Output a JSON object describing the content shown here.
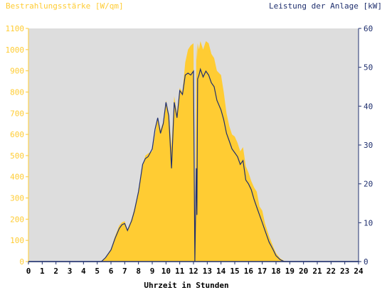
{
  "chart_data": {
    "type": "area",
    "title_left": "Bestrahlungsstärke [W/qm]",
    "title_right": "Leistung der Anlage [kW]",
    "xlabel": "Uhrzeit in Stunden",
    "x_ticks": [
      0,
      1,
      2,
      3,
      4,
      5,
      6,
      7,
      8,
      9,
      10,
      11,
      12,
      13,
      14,
      15,
      16,
      17,
      18,
      19,
      20,
      21,
      22,
      23,
      24
    ],
    "y_left_ticks": [
      0,
      100,
      200,
      300,
      400,
      500,
      600,
      700,
      800,
      900,
      1000,
      1100
    ],
    "y_right_ticks": [
      0,
      10,
      20,
      30,
      40,
      50,
      60
    ],
    "xlim": [
      0,
      24
    ],
    "ylim_left": [
      0,
      1100
    ],
    "ylim_right": [
      0,
      60
    ],
    "grid": false,
    "colors": {
      "irradiance_fill": "#ffcc33",
      "power_line": "#1f2f6e",
      "plot_background": "#dddddd",
      "left_axis_text": "#ffcc33",
      "right_axis_text": "#1f2f6e",
      "x_axis_text": "#000000"
    },
    "series": [
      {
        "axis": "left",
        "x": [
          0,
          5.3,
          5.6,
          6.0,
          6.3,
          6.6,
          6.8,
          7.0,
          7.2,
          7.5,
          7.7,
          8.0,
          8.3,
          8.5,
          8.7,
          9.0,
          9.2,
          9.4,
          9.6,
          9.8,
          10.0,
          10.2,
          10.4,
          10.6,
          10.8,
          11.0,
          11.2,
          11.4,
          11.6,
          11.8,
          12.0,
          12.1,
          12.2,
          12.25,
          12.3,
          12.4,
          12.5,
          12.7,
          12.9,
          13.1,
          13.3,
          13.5,
          13.7,
          14.0,
          14.2,
          14.4,
          14.6,
          14.8,
          15.0,
          15.2,
          15.4,
          15.6,
          15.8,
          16.0,
          16.2,
          16.4,
          16.6,
          16.8,
          17.0,
          17.2,
          17.5,
          17.8,
          18.0,
          18.3,
          18.6,
          19.0,
          19.4,
          19.6,
          24
        ],
        "y": [
          0,
          0,
          20,
          60,
          120,
          170,
          185,
          190,
          150,
          200,
          250,
          330,
          450,
          500,
          510,
          520,
          600,
          680,
          620,
          660,
          760,
          700,
          540,
          780,
          700,
          820,
          800,
          940,
          1000,
          1020,
          1030,
          0,
          1020,
          950,
          1030,
          1000,
          1040,
          1000,
          1040,
          1030,
          980,
          960,
          900,
          880,
          800,
          700,
          640,
          600,
          590,
          560,
          520,
          540,
          450,
          420,
          380,
          350,
          330,
          260,
          240,
          180,
          120,
          70,
          40,
          15,
          3,
          0,
          0,
          0,
          0
        ]
      },
      {
        "axis": "right",
        "x": [
          0,
          5.3,
          5.6,
          6.0,
          6.3,
          6.6,
          6.8,
          7.0,
          7.2,
          7.5,
          7.7,
          8.0,
          8.3,
          8.5,
          8.7,
          9.0,
          9.2,
          9.4,
          9.6,
          9.8,
          10.0,
          10.2,
          10.4,
          10.6,
          10.8,
          11.0,
          11.2,
          11.4,
          11.6,
          11.8,
          12.0,
          12.1,
          12.2,
          12.25,
          12.3,
          12.4,
          12.5,
          12.7,
          12.9,
          13.1,
          13.3,
          13.5,
          13.7,
          14.0,
          14.2,
          14.4,
          14.6,
          14.8,
          15.0,
          15.2,
          15.4,
          15.6,
          15.8,
          16.0,
          16.2,
          16.4,
          16.6,
          16.8,
          17.0,
          17.2,
          17.5,
          17.8,
          18.0,
          18.3,
          18.6,
          19.0,
          19.4,
          19.6,
          24
        ],
        "y": [
          0,
          0,
          1.0,
          3.0,
          6.0,
          8.5,
          9.5,
          9.8,
          8.0,
          10.5,
          13.0,
          18.0,
          25.0,
          26.5,
          27.0,
          29.0,
          34.0,
          37.0,
          33.0,
          35.5,
          41.0,
          37.5,
          24.0,
          41.0,
          37.0,
          44.0,
          43.0,
          48.0,
          48.5,
          48.0,
          49.0,
          0,
          24.0,
          12.0,
          47.0,
          48.0,
          49.5,
          47.5,
          49.0,
          48.0,
          46.0,
          45.0,
          41.5,
          39.0,
          36.5,
          33.0,
          31.0,
          29.0,
          28.0,
          27.0,
          25.0,
          26.0,
          21.0,
          20.0,
          18.5,
          16.0,
          14.0,
          12.0,
          10.0,
          8.0,
          5.0,
          3.0,
          1.5,
          0.5,
          0,
          0,
          0,
          0,
          0
        ]
      }
    ]
  }
}
